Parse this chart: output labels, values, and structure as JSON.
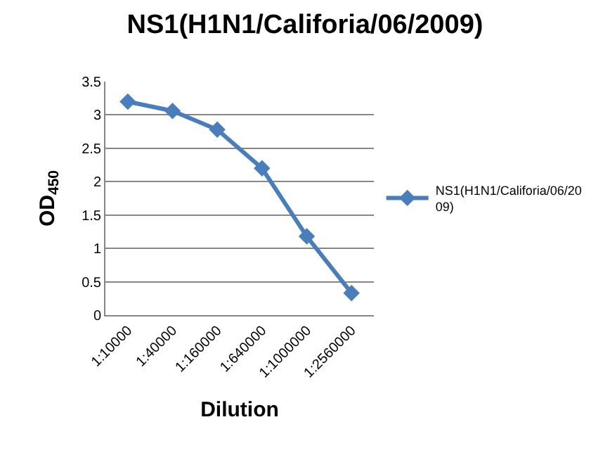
{
  "chart_data": {
    "type": "line",
    "title": "NS1(H1N1/Califoria/06/2009)",
    "xlabel": "Dilution",
    "ylabel": "OD$_{450}$",
    "categories": [
      "1:10000",
      "1:40000",
      "1:160000",
      "1:640000",
      "1:1000000",
      "1:2560000"
    ],
    "series": [
      {
        "name": "NS1(H1N1/Califoria/06/2009)",
        "color": "#4a7ebb",
        "values": [
          3.2,
          3.06,
          2.78,
          2.2,
          1.18,
          0.33
        ]
      }
    ],
    "ylim": [
      0,
      3.5
    ],
    "yticks": [
      0,
      0.5,
      1,
      1.5,
      2,
      2.5,
      3,
      3.5
    ],
    "grid": "y",
    "legend": "right",
    "marker": "diamond",
    "line_style": "solid"
  }
}
